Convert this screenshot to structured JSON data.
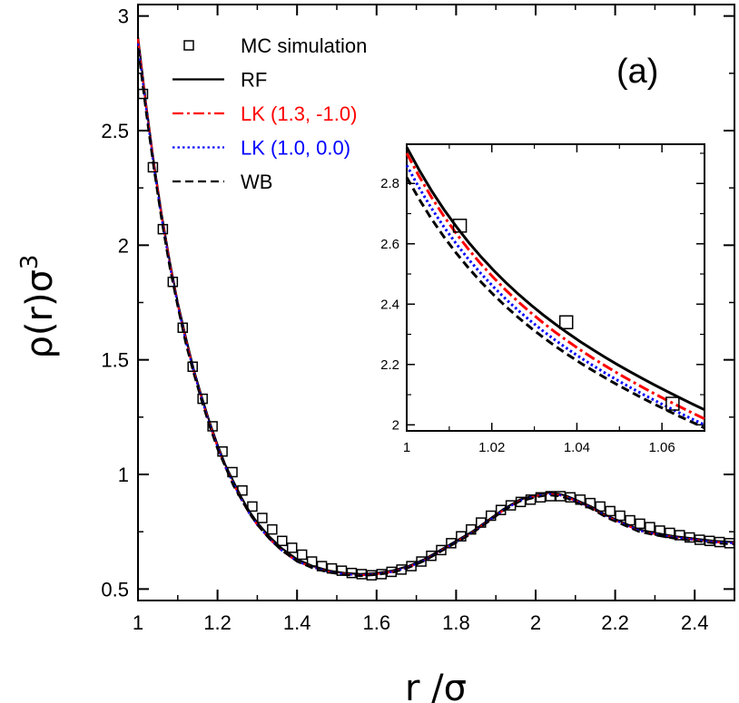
{
  "chart_data": {
    "type": "line",
    "panel_label": "(a)",
    "xlabel": "r /σ",
    "ylabel_main": "ρ(r)σ",
    "ylabel_sup": "3",
    "xlim": [
      1.0,
      2.5
    ],
    "ylim": [
      0.45,
      3.05
    ],
    "xticks": [
      1,
      1.2,
      1.4,
      1.6,
      1.8,
      2,
      2.2,
      2.4
    ],
    "yticks": [
      0.5,
      1,
      1.5,
      2,
      2.5,
      3
    ],
    "xtick_labels": [
      "1",
      "1.2",
      "1.4",
      "1.6",
      "1.8",
      "2",
      "2.2",
      "2.4"
    ],
    "ytick_labels": [
      "0.5",
      "1",
      "1.5",
      "2",
      "2.5",
      "3"
    ],
    "legend": {
      "placement": "top-left",
      "entries": [
        {
          "label": "MC simulation",
          "color": "#000000",
          "style": "square-marker"
        },
        {
          "label": "RF",
          "color": "#000000",
          "style": "solid"
        },
        {
          "label": "LK (1.3, -1.0)",
          "color": "#ff0000",
          "style": "dash-dot"
        },
        {
          "label": "LK (1.0, 0.0)",
          "color": "#0000ff",
          "style": "dotted"
        },
        {
          "label": "WB",
          "color": "#000000",
          "style": "dashed"
        }
      ]
    },
    "curve_x": [
      1.0,
      1.02,
      1.04,
      1.06,
      1.08,
      1.1,
      1.12,
      1.14,
      1.16,
      1.18,
      1.2,
      1.22,
      1.24,
      1.26,
      1.28,
      1.3,
      1.33,
      1.36,
      1.4,
      1.44,
      1.48,
      1.52,
      1.56,
      1.6,
      1.64,
      1.68,
      1.72,
      1.76,
      1.8,
      1.84,
      1.88,
      1.92,
      1.96,
      2.0,
      2.03,
      2.06,
      2.08,
      2.1,
      2.14,
      2.18,
      2.22,
      2.26,
      2.3,
      2.35,
      2.4,
      2.45,
      2.5
    ],
    "series": [
      {
        "name": "RF",
        "color": "#000000",
        "dash": "",
        "width": 2.2,
        "values": [
          2.91,
          2.62,
          2.36,
          2.13,
          1.93,
          1.75,
          1.6,
          1.46,
          1.34,
          1.23,
          1.13,
          1.04,
          0.97,
          0.9,
          0.84,
          0.79,
          0.73,
          0.68,
          0.63,
          0.6,
          0.58,
          0.57,
          0.565,
          0.57,
          0.58,
          0.6,
          0.63,
          0.67,
          0.71,
          0.75,
          0.8,
          0.85,
          0.89,
          0.91,
          0.92,
          0.915,
          0.905,
          0.89,
          0.86,
          0.82,
          0.79,
          0.76,
          0.745,
          0.73,
          0.72,
          0.71,
          0.705
        ]
      },
      {
        "name": "LK (1.3, -1.0)",
        "color": "#ff0000",
        "dash": "12 4 3 4",
        "width": 2.2,
        "values": [
          2.9,
          2.61,
          2.35,
          2.12,
          1.92,
          1.74,
          1.59,
          1.45,
          1.33,
          1.22,
          1.12,
          1.03,
          0.96,
          0.89,
          0.83,
          0.78,
          0.72,
          0.67,
          0.62,
          0.595,
          0.575,
          0.565,
          0.56,
          0.565,
          0.575,
          0.595,
          0.625,
          0.665,
          0.705,
          0.745,
          0.795,
          0.845,
          0.885,
          0.905,
          0.915,
          0.91,
          0.9,
          0.885,
          0.855,
          0.815,
          0.785,
          0.755,
          0.74,
          0.725,
          0.715,
          0.705,
          0.7
        ]
      },
      {
        "name": "LK (1.0, 0.0)",
        "color": "#0000ff",
        "dash": "2.5 3",
        "width": 2.2,
        "values": [
          2.88,
          2.6,
          2.34,
          2.11,
          1.91,
          1.74,
          1.58,
          1.45,
          1.33,
          1.22,
          1.12,
          1.03,
          0.96,
          0.89,
          0.83,
          0.78,
          0.72,
          0.67,
          0.62,
          0.595,
          0.575,
          0.565,
          0.56,
          0.565,
          0.575,
          0.595,
          0.625,
          0.665,
          0.705,
          0.745,
          0.795,
          0.845,
          0.885,
          0.905,
          0.915,
          0.91,
          0.9,
          0.885,
          0.855,
          0.815,
          0.785,
          0.755,
          0.74,
          0.725,
          0.715,
          0.705,
          0.7
        ]
      },
      {
        "name": "WB",
        "color": "#000000",
        "dash": "9 5",
        "width": 2.2,
        "values": [
          2.86,
          2.58,
          2.33,
          2.1,
          1.9,
          1.73,
          1.57,
          1.44,
          1.32,
          1.21,
          1.11,
          1.03,
          0.95,
          0.89,
          0.83,
          0.78,
          0.72,
          0.67,
          0.62,
          0.59,
          0.572,
          0.562,
          0.557,
          0.562,
          0.572,
          0.592,
          0.622,
          0.662,
          0.702,
          0.742,
          0.792,
          0.842,
          0.882,
          0.9,
          0.91,
          0.905,
          0.895,
          0.88,
          0.85,
          0.81,
          0.78,
          0.75,
          0.735,
          0.72,
          0.71,
          0.7,
          0.695
        ]
      }
    ],
    "mc_points": {
      "name": "MC simulation",
      "x": [
        1.0125,
        1.0375,
        1.0625,
        1.0875,
        1.1125,
        1.1375,
        1.1625,
        1.1875,
        1.2125,
        1.2375,
        1.2625,
        1.2875,
        1.3125,
        1.3375,
        1.3625,
        1.3875,
        1.4125,
        1.4375,
        1.4625,
        1.4875,
        1.5125,
        1.5375,
        1.5625,
        1.5875,
        1.6125,
        1.6375,
        1.6625,
        1.6875,
        1.7125,
        1.7375,
        1.7625,
        1.7875,
        1.8125,
        1.8375,
        1.8625,
        1.8875,
        1.9125,
        1.9375,
        1.9625,
        1.9875,
        2.0125,
        2.0375,
        2.0625,
        2.0875,
        2.1125,
        2.1375,
        2.1625,
        2.1875,
        2.2125,
        2.2375,
        2.2625,
        2.2875,
        2.3125,
        2.3375,
        2.3625,
        2.3875,
        2.4125,
        2.4375,
        2.4625,
        2.4875
      ],
      "values": [
        2.66,
        2.34,
        2.07,
        1.84,
        1.64,
        1.47,
        1.33,
        1.21,
        1.1,
        1.01,
        0.93,
        0.86,
        0.81,
        0.76,
        0.71,
        0.68,
        0.65,
        0.62,
        0.6,
        0.59,
        0.58,
        0.57,
        0.565,
        0.56,
        0.565,
        0.575,
        0.585,
        0.6,
        0.62,
        0.645,
        0.67,
        0.7,
        0.73,
        0.76,
        0.79,
        0.82,
        0.845,
        0.865,
        0.88,
        0.89,
        0.9,
        0.905,
        0.905,
        0.9,
        0.89,
        0.875,
        0.86,
        0.84,
        0.82,
        0.8,
        0.785,
        0.77,
        0.755,
        0.745,
        0.735,
        0.725,
        0.715,
        0.71,
        0.705,
        0.7
      ]
    },
    "inset": {
      "xlim": [
        1.0,
        1.07
      ],
      "ylim": [
        1.98,
        2.93
      ],
      "xticks": [
        1,
        1.02,
        1.04,
        1.06
      ],
      "yticks": [
        2,
        2.2,
        2.4,
        2.6,
        2.8
      ],
      "xtick_labels": [
        "1",
        "1.02",
        "1.04",
        "1.06"
      ],
      "ytick_labels": [
        "2",
        "2.2",
        "2.4",
        "2.6",
        "2.8"
      ],
      "series": [
        {
          "name": "RF",
          "x": [
            1.0,
            1.07
          ],
          "y0": 2.92,
          "y1": 2.05,
          "color": "#000000",
          "dash": "",
          "width": 3
        },
        {
          "name": "LK (1.3, -1.0)",
          "x": [
            1.0,
            1.07
          ],
          "y0": 2.9,
          "y1": 2.02,
          "color": "#ff0000",
          "dash": "12 4 3 4",
          "width": 3
        },
        {
          "name": "LK (1.0, 0.0)",
          "x": [
            1.0,
            1.07
          ],
          "y0": 2.86,
          "y1": 2.0,
          "color": "#0000ff",
          "dash": "2.5 3",
          "width": 3
        },
        {
          "name": "WB",
          "x": [
            1.0,
            1.07
          ],
          "y0": 2.82,
          "y1": 1.99,
          "color": "#000000",
          "dash": "9 5",
          "width": 3
        }
      ],
      "mc_x": [
        1.0125,
        1.0375,
        1.0625
      ],
      "mc_values": [
        2.66,
        2.34,
        2.07
      ]
    }
  }
}
